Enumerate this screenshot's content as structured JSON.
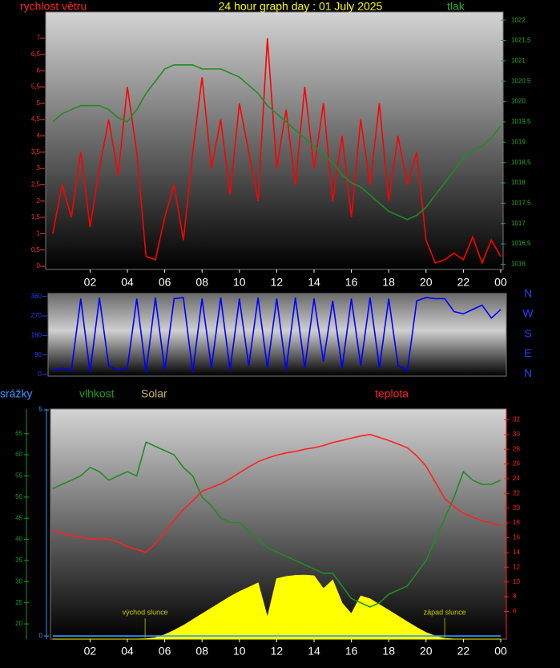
{
  "chart_data": [
    {
      "type": "line",
      "title": "24 hour graph day : 01 July 2025",
      "y_label": "rychlost větru",
      "y2_label": "tlak",
      "x": [
        0,
        0.5,
        1,
        1.5,
        2,
        2.5,
        3,
        3.5,
        4,
        4.5,
        5,
        5.5,
        6,
        6.5,
        7,
        7.5,
        8,
        8.5,
        9,
        9.5,
        10,
        10.5,
        11,
        11.5,
        12,
        12.5,
        13,
        13.5,
        14,
        14.5,
        15,
        15.5,
        16,
        16.5,
        17,
        17.5,
        18,
        18.5,
        19,
        19.5,
        20,
        20.5,
        21,
        21.5,
        22,
        22.5,
        23,
        23.5,
        24
      ],
      "xlim": [
        -0.38,
        24.13
      ],
      "xticks": [
        {
          "value": 2,
          "label": "02"
        },
        {
          "value": 4,
          "label": "04"
        },
        {
          "value": 6,
          "label": "06"
        },
        {
          "value": 8,
          "label": "08"
        },
        10,
        12,
        14,
        16,
        18,
        20,
        22,
        {
          "value": 24,
          "label": "00"
        }
      ],
      "ylim": [
        0,
        7.8
      ],
      "yticks": [
        0,
        {
          "value": 0.5,
          "label": "0,5"
        },
        1,
        {
          "value": 1.5,
          "label": "1,5"
        },
        2,
        {
          "value": 2.5,
          "label": "2,5"
        },
        3,
        {
          "value": 3.5,
          "label": "3,5"
        },
        4,
        {
          "value": 4.5,
          "label": "4,5"
        },
        5,
        {
          "value": 5.5,
          "label": "5,5"
        },
        6,
        {
          "value": 6.5,
          "label": "6,5"
        },
        7
      ],
      "y2lim": [
        1015.95,
        1022.2
      ],
      "y2ticks": [
        1016,
        {
          "value": 1016.5,
          "label": "1016,5"
        },
        1017,
        {
          "value": 1017.5,
          "label": "1017,5"
        },
        1018,
        {
          "value": 1018.5,
          "label": "1018,5"
        },
        1019,
        {
          "value": 1019.5,
          "label": "1019,5"
        },
        1020,
        {
          "value": 1020.5,
          "label": "1020,5"
        },
        1021,
        {
          "value": 1021.5,
          "label": "1021,5"
        },
        1022
      ],
      "series": [
        {
          "color": "#ff0000",
          "axis": "y",
          "values": [
            1.0,
            2.5,
            1.5,
            3.5,
            1.2,
            3.0,
            4.5,
            2.8,
            5.5,
            3.5,
            0.3,
            0.2,
            1.5,
            2.5,
            0.8,
            3.5,
            5.8,
            3.0,
            4.5,
            2.2,
            5.0,
            3.5,
            2.0,
            7.0,
            3.0,
            4.8,
            2.5,
            5.5,
            3.0,
            5.0,
            2.0,
            4.0,
            1.5,
            4.5,
            2.5,
            5.0,
            2.0,
            4.0,
            2.5,
            3.5,
            0.8,
            0.1,
            0.2,
            0.4,
            0.2,
            0.9,
            0.1,
            0.8,
            0.3
          ]
        },
        {
          "color": "#228b22",
          "axis": "y2",
          "values": [
            1019.5,
            1019.7,
            1019.8,
            1019.9,
            1019.9,
            1019.9,
            1019.8,
            1019.6,
            1019.5,
            1019.8,
            1020.2,
            1020.5,
            1020.8,
            1020.9,
            1020.9,
            1020.9,
            1020.8,
            1020.8,
            1020.8,
            1020.7,
            1020.6,
            1020.4,
            1020.2,
            1019.9,
            1019.7,
            1019.5,
            1019.3,
            1019.1,
            1018.9,
            1018.7,
            1018.5,
            1018.2,
            1018.0,
            1017.9,
            1017.7,
            1017.5,
            1017.3,
            1017.2,
            1017.1,
            1017.2,
            1017.4,
            1017.7,
            1018.0,
            1018.3,
            1018.6,
            1018.8,
            1018.9,
            1019.1,
            1019.4
          ]
        }
      ]
    },
    {
      "type": "line",
      "right_labels": [
        "N",
        "W",
        "S",
        "E",
        "N"
      ],
      "x": [
        0,
        0.5,
        1,
        1.5,
        2,
        2.5,
        3,
        3.5,
        4,
        4.5,
        5,
        5.5,
        6,
        6.5,
        7,
        7.5,
        8,
        8.5,
        9,
        9.5,
        10,
        10.5,
        11,
        11.5,
        12,
        12.5,
        13,
        13.5,
        14,
        14.5,
        15,
        15.5,
        16,
        16.5,
        17,
        17.5,
        18,
        18.5,
        19,
        19.5,
        20,
        20.5,
        21,
        21.5,
        22,
        22.5,
        23,
        23.5,
        24
      ],
      "xlim": [
        -0.25,
        24.3
      ],
      "ylim": [
        0,
        370
      ],
      "yticks": [
        0,
        90,
        180,
        270,
        360
      ],
      "series": [
        {
          "color": "#0000ff",
          "axis": "y",
          "values": [
            20,
            30,
            20,
            350,
            10,
            355,
            40,
            20,
            30,
            350,
            10,
            355,
            20,
            350,
            355,
            10,
            350,
            30,
            355,
            20,
            350,
            40,
            355,
            30,
            350,
            20,
            355,
            30,
            350,
            60,
            340,
            30,
            350,
            40,
            355,
            30,
            350,
            40,
            20,
            340,
            355,
            350,
            350,
            290,
            280,
            300,
            320,
            260,
            300
          ]
        }
      ]
    },
    {
      "type": "line",
      "x": [
        0,
        0.5,
        1,
        1.5,
        2,
        2.5,
        3,
        3.5,
        4,
        4.5,
        5,
        5.5,
        6,
        6.5,
        7,
        7.5,
        8,
        8.5,
        9,
        9.5,
        10,
        10.5,
        11,
        11.5,
        12,
        12.5,
        13,
        13.5,
        14,
        14.5,
        15,
        15.5,
        16,
        16.5,
        17,
        17.5,
        18,
        18.5,
        19,
        19.5,
        20,
        20.5,
        21,
        21.5,
        22,
        22.5,
        23,
        23.5,
        24
      ],
      "xlim": [
        -0.12,
        24.3
      ],
      "xticks": [
        {
          "value": 2,
          "label": "02"
        },
        {
          "value": 4,
          "label": "04"
        },
        {
          "value": 6,
          "label": "06"
        },
        {
          "value": 8,
          "label": "08"
        },
        10,
        12,
        14,
        16,
        18,
        20,
        22,
        {
          "value": 24,
          "label": "00"
        }
      ],
      "ylim": [
        18.3,
        67.8
      ],
      "yticks": [
        20,
        25,
        30,
        35,
        40,
        45,
        50,
        55,
        60,
        65
      ],
      "y2lim": [
        4.2,
        32.7
      ],
      "y2ticks": [
        6,
        8,
        10,
        12,
        14,
        16,
        18,
        20,
        22,
        24,
        26,
        28,
        30,
        32
      ],
      "y3lim": [
        -0.07,
        5.02
      ],
      "y3ticks": [
        0,
        5
      ],
      "y4lim": [
        0,
        3200
      ],
      "series": [
        {
          "name": "srážky",
          "color": "#3399ff",
          "axis": "y3",
          "values": [
            0,
            0,
            0,
            0,
            0,
            0,
            0,
            0,
            0,
            0,
            0,
            0,
            0,
            0,
            0,
            0,
            0,
            0,
            0,
            0,
            0,
            0,
            0,
            0,
            0,
            0,
            0,
            0,
            0,
            0,
            0,
            0,
            0,
            0,
            0,
            0,
            0,
            0,
            0,
            0,
            0,
            0,
            0,
            0,
            0,
            0,
            0,
            0,
            0
          ]
        },
        {
          "name": "vlhkost",
          "color": "#228b22",
          "axis": "y",
          "values": [
            52,
            53,
            54,
            55,
            57,
            56,
            54,
            55,
            56,
            55,
            63,
            62,
            61,
            60,
            57,
            55,
            50,
            48,
            45,
            44,
            44,
            42,
            40,
            38,
            37,
            36,
            35,
            34,
            33,
            32,
            32,
            29,
            26,
            25,
            24,
            25,
            27,
            28,
            29,
            32,
            35,
            40,
            45,
            50,
            56,
            54,
            53,
            53,
            54
          ]
        },
        {
          "name": "Solar",
          "color": "#ffff00",
          "axis": "y4",
          "area": true,
          "values": [
            0,
            0,
            0,
            0,
            0,
            0,
            0,
            0,
            0,
            0,
            5,
            20,
            60,
            120,
            190,
            270,
            350,
            430,
            510,
            590,
            660,
            720,
            780,
            300,
            840,
            870,
            885,
            890,
            880,
            700,
            820,
            500,
            350,
            600,
            560,
            480,
            400,
            320,
            240,
            160,
            90,
            40,
            10,
            0,
            0,
            0,
            0,
            0,
            0
          ]
        },
        {
          "name": "teplota",
          "color": "#ff2020",
          "axis": "y2",
          "values": [
            17,
            16.6,
            16.3,
            16.1,
            15.8,
            15.9,
            15.8,
            15.4,
            14.8,
            14.4,
            14.0,
            15.2,
            16.8,
            18.3,
            19.8,
            21.0,
            22.3,
            22.8,
            23.3,
            24.0,
            24.8,
            25.6,
            26.3,
            26.8,
            27.2,
            27.5,
            27.7,
            28.0,
            28.2,
            28.5,
            28.9,
            29.2,
            29.5,
            29.8,
            30.0,
            29.6,
            29.2,
            28.7,
            28.2,
            27.1,
            25.7,
            23.5,
            21.3,
            20.2,
            19.3,
            18.8,
            18.3,
            18.0,
            17.6
          ]
        }
      ],
      "annotations": [
        {
          "text": "východ slunce",
          "x": 4.95
        },
        {
          "text": "západ slunce",
          "x": 21.0
        }
      ]
    }
  ]
}
